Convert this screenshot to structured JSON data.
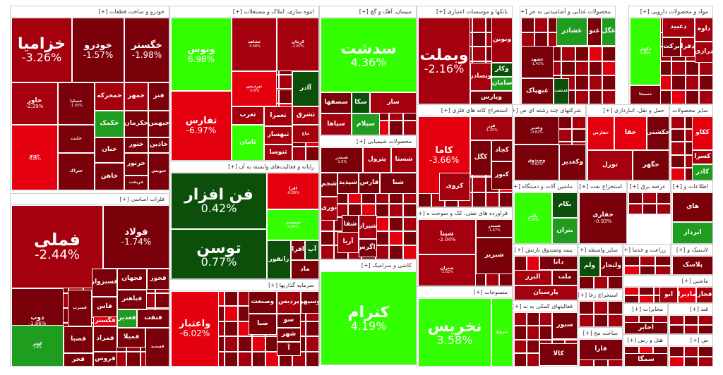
{
  "colors": {
    "dark_red": "#7a0009",
    "red": "#a5000e",
    "bright_red": "#e4000f",
    "light_green": "#33ff00",
    "mid_green": "#1f9d1f",
    "dark_green": "#0b4f0b"
  },
  "sectors": [
    {
      "id": "auto",
      "title": "خودرو و ساخت قطعات [+]",
      "tiles": [
        {
          "sym": "خزامیا",
          "pct": "-3.26%",
          "size": "l"
        },
        {
          "sym": "خودرو",
          "pct": "-1.57%",
          "size": "m"
        },
        {
          "sym": "خگستر",
          "pct": "-1.98%",
          "size": "m"
        },
        {
          "sym": "خاور",
          "pct": "-2.29%",
          "size": "s"
        },
        {
          "sym": "خساپا",
          "pct": "-1.93%",
          "size": "xs"
        },
        {
          "sym": "خمحرکه",
          "pct": "",
          "size": "s"
        },
        {
          "sym": "خمهر",
          "pct": "",
          "size": "s"
        },
        {
          "sym": "فنر",
          "pct": "",
          "size": "s"
        },
        {
          "sym": "خکمک",
          "pct": "",
          "size": "s"
        },
        {
          "sym": "خکرمان",
          "pct": "",
          "size": "s"
        },
        {
          "sym": "خبهمن",
          "pct": "",
          "size": "s"
        },
        {
          "sym": "خاذین",
          "pct": "",
          "size": "s"
        },
        {
          "sym": "خلنت",
          "pct": "",
          "size": "xs"
        },
        {
          "sym": "ختور",
          "pct": "",
          "size": "s"
        },
        {
          "sym": "خنان",
          "pct": "",
          "size": "s"
        },
        {
          "sym": "خاهن",
          "pct": "",
          "size": "s"
        },
        {
          "sym": "خرتور",
          "pct": "",
          "size": "s"
        },
        {
          "sym": "خوتو",
          "pct": "-4.05%",
          "size": "xs"
        },
        {
          "sym": "ختراک",
          "pct": "",
          "size": "xs"
        },
        {
          "sym": "خریخت",
          "pct": "",
          "size": "xs"
        },
        {
          "sym": "خپویش",
          "pct": "",
          "size": "xs"
        }
      ]
    },
    {
      "id": "construction",
      "title": "انبوه سازی، املاک و مستغلات [+]",
      "tiles": [
        {
          "sym": "ونوس",
          "pct": "6.98%",
          "size": "m"
        },
        {
          "sym": "ثشاهد",
          "pct": "-3.48%",
          "size": "xs"
        },
        {
          "sym": "کرمان",
          "pct": "-2.87%",
          "size": "xs"
        },
        {
          "sym": "ثپردیس",
          "pct": "-3.8%",
          "size": "xs"
        },
        {
          "sym": "آادر",
          "pct": "",
          "size": "s"
        },
        {
          "sym": "تفارس",
          "pct": "-6.97%",
          "size": "m"
        },
        {
          "sym": "ثعرب",
          "pct": "",
          "size": "s"
        },
        {
          "sym": "ثعمرا",
          "pct": "",
          "size": "s"
        },
        {
          "sym": "ثشرق",
          "pct": "",
          "size": "s"
        },
        {
          "sym": "ثباغ",
          "pct": "",
          "size": "xs"
        },
        {
          "sym": "ثبهساز",
          "pct": "",
          "size": "s"
        },
        {
          "sym": "ثرود",
          "pct": "",
          "size": "s"
        },
        {
          "sym": "ثامان",
          "pct": "",
          "size": "s"
        },
        {
          "sym": "ثنوسا",
          "pct": "",
          "size": "s"
        }
      ]
    },
    {
      "id": "cement",
      "title": "سیمان، آهک و گچ [+]",
      "tiles": [
        {
          "sym": "سدشت",
          "pct": "4.36%",
          "size": "l"
        },
        {
          "sym": "سصفها",
          "pct": "",
          "size": "s"
        },
        {
          "sym": "سکا",
          "pct": "",
          "size": "s"
        },
        {
          "sym": "سار",
          "pct": "",
          "size": "s"
        },
        {
          "sym": "سپاها",
          "pct": "",
          "size": "s"
        },
        {
          "sym": "سیلام",
          "pct": "",
          "size": "s"
        }
      ]
    },
    {
      "id": "banks",
      "title": "بانکها و موسسات اعتباری [+]",
      "tiles": [
        {
          "sym": "وبملت",
          "pct": "-2.16%",
          "size": "l"
        },
        {
          "sym": "ونوین",
          "pct": "",
          "size": "s"
        },
        {
          "sym": "وکار",
          "pct": "",
          "size": "s"
        },
        {
          "sym": "وبصادر",
          "pct": "",
          "size": "s"
        },
        {
          "sym": "سامان",
          "pct": "",
          "size": "s"
        },
        {
          "sym": "ویارس",
          "pct": "",
          "size": "s"
        }
      ]
    },
    {
      "id": "food",
      "title": "محصولات غذایی و آشامیدنی به جز [+]",
      "tiles": [
        {
          "sym": "غشاذر",
          "pct": "",
          "size": "s"
        },
        {
          "sym": "غنو",
          "pct": "",
          "size": "s"
        },
        {
          "sym": "غگل",
          "pct": "",
          "size": "s"
        },
        {
          "sym": "غشهد",
          "pct": "-1.41%",
          "size": "xs"
        },
        {
          "sym": "غبهپاک",
          "pct": "",
          "size": "s"
        },
        {
          "sym": "غدشت",
          "pct": "",
          "size": "xs"
        }
      ]
    },
    {
      "id": "pharma",
      "title": "مواد و محصولات دارویی [+]",
      "tiles": [
        {
          "sym": "دکوثر",
          "pct": "4.08%",
          "size": "xs"
        },
        {
          "sym": "داوه",
          "pct": "",
          "size": "s"
        },
        {
          "sym": "دعبید",
          "pct": "",
          "size": "s"
        },
        {
          "sym": "برکت",
          "pct": "",
          "size": "s"
        },
        {
          "sym": "درازی",
          "pct": "",
          "size": "s"
        },
        {
          "sym": "دفرا",
          "pct": "",
          "size": "s"
        },
        {
          "sym": "دسبحا",
          "pct": "",
          "size": "xs"
        }
      ]
    },
    {
      "id": "metals",
      "title": "فلزات اساسی [+]",
      "tiles": [
        {
          "sym": "فملی",
          "pct": "-2.44%",
          "size": "xl"
        },
        {
          "sym": "فولاد",
          "pct": "-1.74%",
          "size": "m"
        },
        {
          "sym": "فخوز",
          "pct": "",
          "size": "s"
        },
        {
          "sym": "فجهان",
          "pct": "",
          "size": "s"
        },
        {
          "sym": "فسرب",
          "pct": "",
          "size": "xs"
        },
        {
          "sym": "فسبزوار",
          "pct": "",
          "size": "s"
        },
        {
          "sym": "فاس",
          "pct": "",
          "size": "s"
        },
        {
          "sym": "ذوب",
          "pct": "-1.86%",
          "size": "s"
        },
        {
          "sym": "فصبا",
          "pct": "",
          "size": "s"
        },
        {
          "sym": "فباهنر",
          "pct": "",
          "size": "s"
        },
        {
          "sym": "فنفت",
          "pct": "",
          "size": "s"
        },
        {
          "sym": "فغدیر",
          "pct": "",
          "size": "s"
        },
        {
          "sym": "فمراد",
          "pct": "",
          "size": "s"
        },
        {
          "sym": "کویر",
          "pct": "1.6%",
          "size": "xs"
        },
        {
          "sym": "فجر",
          "pct": "",
          "size": "s"
        },
        {
          "sym": "فروس",
          "pct": "",
          "size": "s"
        },
        {
          "sym": "فگستر",
          "pct": "",
          "size": "s"
        },
        {
          "sym": "فمیلا",
          "pct": "",
          "size": "s"
        },
        {
          "sym": "فسدید",
          "pct": "",
          "size": "xs"
        }
      ]
    },
    {
      "id": "it",
      "title": "رایانه و فعالیت‌های وابسته به آن [+]",
      "tiles": [
        {
          "sym": "فن افزار",
          "pct": "0.42%",
          "size": "l"
        },
        {
          "sym": "افرا",
          "pct": "-6.89%",
          "size": "xs"
        },
        {
          "sym": "سیستم",
          "pct": "5.98%",
          "size": "xs"
        },
        {
          "sym": "توسن",
          "pct": "0.77%",
          "size": "l"
        },
        {
          "sym": "رانفور",
          "pct": "",
          "size": "s"
        },
        {
          "sym": "افرا",
          "pct": "",
          "size": "s"
        },
        {
          "sym": "آپ",
          "pct": "",
          "size": "s"
        },
        {
          "sym": "ماد",
          "pct": "",
          "size": "s"
        }
      ]
    },
    {
      "id": "chemical",
      "title": "محصولات شیمیایی [+]",
      "tiles": [
        {
          "sym": "شبندر",
          "pct": "-1.6%",
          "size": "xs"
        },
        {
          "sym": "پترول",
          "pct": "",
          "size": "s"
        },
        {
          "sym": "شستا",
          "pct": "",
          "size": "s"
        },
        {
          "sym": "شجم",
          "pct": "",
          "size": "s"
        },
        {
          "sym": "شپدید",
          "pct": "",
          "size": "s"
        },
        {
          "sym": "فارس",
          "pct": "",
          "size": "s"
        },
        {
          "sym": "شتا",
          "pct": "",
          "size": "s"
        },
        {
          "sym": "نوری",
          "pct": "",
          "size": "s"
        },
        {
          "sym": "شفا",
          "pct": "",
          "size": "s"
        },
        {
          "sym": "شیراز",
          "pct": "",
          "size": "s"
        },
        {
          "sym": "آریا",
          "pct": "",
          "size": "s"
        },
        {
          "sym": "زاگرس",
          "pct": "",
          "size": "s"
        }
      ]
    },
    {
      "id": "refinery",
      "title": "استخراج کانه های فلزی [+]",
      "tiles": [
        {
          "sym": "کاما",
          "pct": "-3.66%",
          "size": "m"
        },
        {
          "sym": "فزر",
          "pct": "-1.25%",
          "size": "xs"
        },
        {
          "sym": "کگل",
          "pct": "",
          "size": "s"
        },
        {
          "sym": "کچاد",
          "pct": "",
          "size": "s"
        },
        {
          "sym": "کروی",
          "pct": "",
          "size": "s"
        },
        {
          "sym": "کنور",
          "pct": "",
          "size": "s"
        }
      ]
    },
    {
      "id": "oil",
      "title": "فراورده های نفتی، کک و سوخت ه [+]",
      "tiles": [
        {
          "sym": "شپنا",
          "pct": "-2.04%",
          "size": "s"
        },
        {
          "sym": "شبریز",
          "pct": "",
          "size": "s"
        },
        {
          "sym": "شبندر",
          "pct": "-1.67%",
          "size": "xs"
        },
        {
          "sym": "شتران",
          "pct": "-2.02%",
          "size": "xs"
        }
      ]
    },
    {
      "id": "ceramic",
      "title": "کاشی و سرامیک [+]",
      "tiles": [
        {
          "sym": "کترام",
          "pct": "4.19%",
          "size": "l"
        }
      ]
    },
    {
      "id": "textiles",
      "title": "منسوجات [+]",
      "tiles": [
        {
          "sym": "نخریس",
          "pct": "3.58%",
          "size": "l"
        },
        {
          "sym": "نبروج",
          "pct": "",
          "size": "xs"
        }
      ]
    },
    {
      "id": "multi",
      "title": "شرکتهای چند رشته ای ص [+]",
      "tiles": [
        {
          "sym": "وغدیر",
          "pct": "-0.82%",
          "size": "xs"
        },
        {
          "sym": "وصندوق",
          "pct": "-0.62%",
          "size": "xs"
        },
        {
          "sym": "وکغدیر",
          "pct": "",
          "size": "s"
        }
      ]
    },
    {
      "id": "transport",
      "title": "حمل و نقل، انبارداری [+]",
      "tiles": [
        {
          "sym": "حفارس",
          "pct": "",
          "size": "xs"
        },
        {
          "sym": "حفا",
          "pct": "",
          "size": "s"
        },
        {
          "sym": "حکشتی",
          "pct": "",
          "size": "s"
        },
        {
          "sym": "تورل",
          "pct": "",
          "size": "s"
        },
        {
          "sym": "حگهر",
          "pct": "",
          "size": "s"
        }
      ]
    },
    {
      "id": "other_products",
      "title": "سایر محصولات کان [+]",
      "tiles": [
        {
          "sym": "ککاو",
          "pct": "",
          "size": "s"
        },
        {
          "sym": "کسرا",
          "pct": "",
          "size": "s"
        },
        {
          "sym": "کاذر",
          "pct": "",
          "size": "s"
        }
      ]
    },
    {
      "id": "machinery",
      "title": "ماشین آلات و دستگاه [+]",
      "tiles": [
        {
          "sym": "بالبر",
          "pct": "3.28%",
          "size": "xs"
        },
        {
          "sym": "بکام",
          "pct": "",
          "size": "s"
        },
        {
          "sym": "بتران",
          "pct": "",
          "size": "s"
        }
      ]
    },
    {
      "id": "oil_extraction",
      "title": "استخراج نفت [+]",
      "tiles": [
        {
          "sym": "حفاری",
          "pct": "-0.93%",
          "size": "s"
        }
      ]
    },
    {
      "id": "electricity",
      "title": "عرضه برق [+]",
      "tiles": []
    },
    {
      "id": "telecom",
      "title": "اطلاعات و [+]",
      "tiles": [
        {
          "sym": "های",
          "pct": "",
          "size": "s"
        },
        {
          "sym": "ایردار",
          "pct": "",
          "size": "s"
        }
      ]
    },
    {
      "id": "investment",
      "title": "سرمایه گذاریها [+]",
      "tiles": [
        {
          "sym": "واعتبار",
          "pct": "-6.02%",
          "size": "m"
        },
        {
          "sym": "وصنعت",
          "pct": "",
          "size": "s"
        },
        {
          "sym": "پردیس",
          "pct": "",
          "size": "s"
        },
        {
          "sym": "وسپهر",
          "pct": "",
          "size": "s"
        },
        {
          "sym": "صبا",
          "pct": "",
          "size": "s"
        },
        {
          "sym": "سو",
          "pct": "",
          "size": "s"
        },
        {
          "sym": "شهر",
          "pct": "",
          "size": "s"
        },
        {
          "sym": "آ",
          "pct": "",
          "size": "s"
        }
      ]
    },
    {
      "id": "intermediation",
      "title": "سایر واسطه [+]",
      "tiles": [
        {
          "sym": "ولم",
          "pct": "",
          "size": "s"
        },
        {
          "sym": "ولتجار",
          "pct": "",
          "size": "s"
        }
      ]
    },
    {
      "id": "insurance",
      "title": "بیمه وصندوق بازنش [+]",
      "tiles": [
        {
          "sym": "دانا",
          "pct": "",
          "size": "s"
        },
        {
          "sym": "البرز",
          "pct": "",
          "size": "s"
        },
        {
          "sym": "ملت",
          "pct": "",
          "size": "s"
        },
        {
          "sym": "پارسیان",
          "pct": "",
          "size": "s"
        }
      ]
    },
    {
      "id": "support",
      "title": "فعالیتهای کمکی به نه [+]",
      "tiles": [
        {
          "sym": "سبور",
          "pct": "",
          "size": "s"
        },
        {
          "sym": "کالا",
          "pct": "",
          "size": "s"
        }
      ]
    },
    {
      "id": "agriculture",
      "title": "زراعت و خدما [+]",
      "tiles": []
    },
    {
      "id": "rubber",
      "title": "لاستیک و [+]",
      "tiles": [
        {
          "sym": "پلاسک",
          "pct": "",
          "size": "s"
        }
      ]
    },
    {
      "id": "coal",
      "title": "استخراج زغا [+]",
      "tiles": []
    },
    {
      "id": "machinery2",
      "title": "ماشین [+]",
      "tiles": [
        {
          "sym": "ابو",
          "pct": "",
          "size": "s"
        },
        {
          "sym": "مادیرا",
          "pct": "",
          "size": "s"
        },
        {
          "sym": "فجار",
          "pct": "",
          "size": "s"
        }
      ]
    },
    {
      "id": "prefab",
      "title": "ساخت مح [+]",
      "tiles": [
        {
          "sym": "فارا",
          "pct": "",
          "size": "s"
        }
      ]
    },
    {
      "id": "telecom2",
      "title": "مخابرات [+]",
      "tiles": [
        {
          "sym": "اخابر",
          "pct": "",
          "size": "s"
        }
      ]
    },
    {
      "id": "wood",
      "title": "هتل و رس [+]",
      "tiles": [
        {
          "sym": "سمگا",
          "pct": "",
          "size": "s"
        }
      ]
    },
    {
      "id": "misc1",
      "title": "قند [+]",
      "tiles": []
    },
    {
      "id": "misc2",
      "title": "س [+]",
      "tiles": []
    }
  ]
}
